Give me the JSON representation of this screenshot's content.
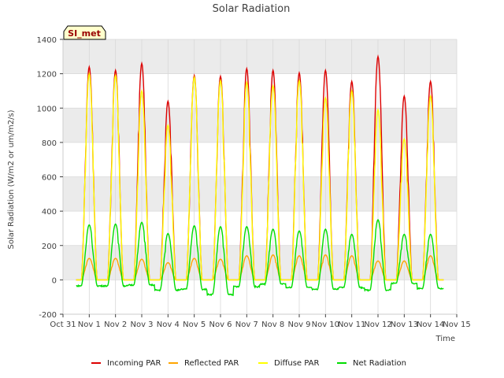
{
  "chart_data": {
    "type": "line",
    "title": "Solar Radiation",
    "xlabel": "Time",
    "ylabel": "Solar Radiation (W/m2 or um/m2/s)",
    "ylim": [
      -200,
      1400
    ],
    "yticks": [
      -200,
      0,
      200,
      400,
      600,
      800,
      1000,
      1200,
      1400
    ],
    "xlim": [
      0,
      15
    ],
    "x_tick_labels": [
      "Oct 31",
      "Nov 1",
      "Nov 2",
      "Nov 3",
      "Nov 4",
      "Nov 5",
      "Nov 6",
      "Nov 7",
      "Nov 8",
      "Nov 9",
      "Nov 10",
      "Nov 11",
      "Nov 12",
      "Nov 13",
      "Nov 14",
      "Nov 15"
    ],
    "station_label": "SI_met",
    "grid": true,
    "legend_position": "bottom",
    "day_offset_start": 0.5,
    "series": [
      {
        "name": "Incoming PAR",
        "color": "#dd0000",
        "daily_peaks": [
          1240,
          1220,
          1260,
          1040,
          1190,
          1185,
          1230,
          1220,
          1205,
          1220,
          1155,
          1300,
          1070,
          1155
        ]
      },
      {
        "name": "Reflected PAR",
        "color": "#ffa500",
        "daily_peaks": [
          125,
          125,
          120,
          100,
          125,
          120,
          140,
          145,
          140,
          145,
          140,
          110,
          110,
          140
        ]
      },
      {
        "name": "Diffuse PAR",
        "color": "#ffff00",
        "daily_peaks": [
          1200,
          1190,
          1100,
          900,
          1180,
          1160,
          1150,
          1130,
          1160,
          1060,
          1100,
          990,
          820,
          1070
        ]
      },
      {
        "name": "Net Radiation",
        "color": "#00dd00",
        "daily_peaks": [
          320,
          325,
          335,
          270,
          315,
          310,
          310,
          295,
          285,
          295,
          265,
          350,
          265,
          265
        ],
        "night_values": [
          -35,
          -35,
          -30,
          -60,
          -55,
          -85,
          -40,
          -25,
          -45,
          -55,
          -45,
          -60,
          -20,
          -50
        ]
      }
    ]
  }
}
